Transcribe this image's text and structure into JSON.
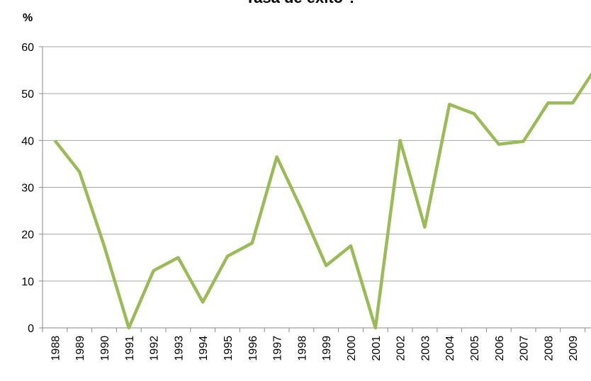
{
  "chart_data": {
    "type": "line",
    "title": "Tasa de éxito ?",
    "y_label": "%",
    "categories": [
      "1988",
      "1989",
      "1990",
      "1991",
      "1992",
      "1993",
      "1994",
      "1995",
      "1996",
      "1997",
      "1998",
      "1999",
      "2000",
      "2001",
      "2002",
      "2003",
      "2004",
      "2005",
      "2006",
      "2007",
      "2008",
      "2009",
      null
    ],
    "series": [
      {
        "name": "Tasa de éxito",
        "color": "#9bbb59",
        "values": [
          40,
          33.3,
          17.5,
          0,
          12.2,
          15,
          5.5,
          15.3,
          18.1,
          36.5,
          25.3,
          13.3,
          17.5,
          0,
          40,
          21.5,
          47.7,
          45.7,
          39.2,
          39.8,
          48,
          48,
          56
        ]
      }
    ],
    "ylim": [
      0,
      60
    ],
    "yticks": [
      0,
      10,
      20,
      30,
      40,
      50,
      60
    ],
    "grid": true,
    "legend": false
  }
}
